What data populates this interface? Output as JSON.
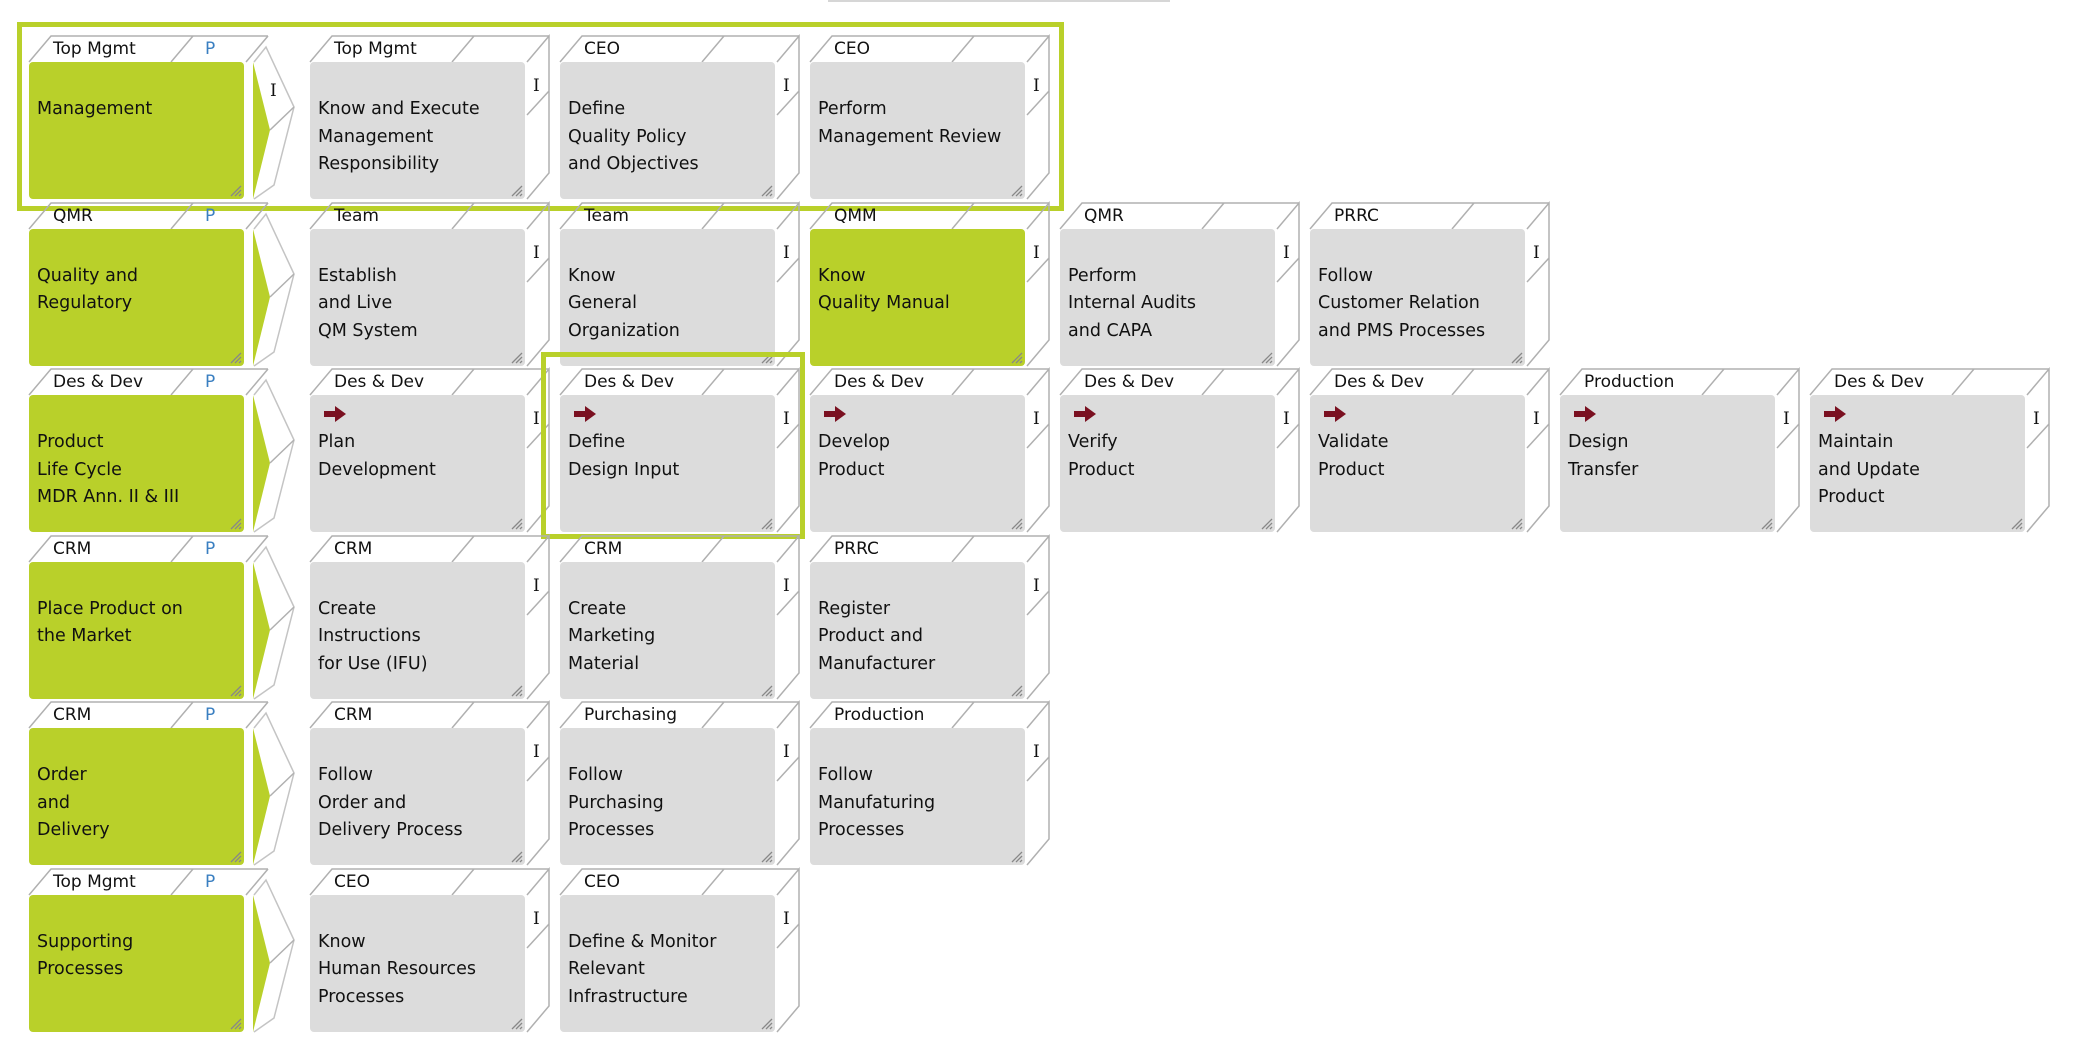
{
  "colors": {
    "accent_green": "#b9d02a",
    "card_grey": "#dcdcdc",
    "process_p": "#3a7fc1",
    "arrow_red": "#7a1020"
  },
  "rows": [
    {
      "header": {
        "role": "Top Mgmt",
        "tag": "P",
        "lines": [
          "Management"
        ],
        "chevron_marker": "I"
      },
      "highlighted": true,
      "cards": [
        {
          "role": "Top Mgmt",
          "marker": "I",
          "lines": [
            "Know and Execute",
            "Management",
            "Responsibility"
          ]
        },
        {
          "role": "CEO",
          "marker": "I",
          "lines": [
            "Define",
            "Quality Policy",
            "and Objectives"
          ]
        },
        {
          "role": "CEO",
          "marker": "I",
          "lines": [
            "Perform",
            "Management Review"
          ]
        }
      ]
    },
    {
      "header": {
        "role": "QMR",
        "tag": "P",
        "lines": [
          "Quality and",
          "Regulatory"
        ]
      },
      "cards": [
        {
          "role": "Team",
          "marker": "I",
          "lines": [
            "Establish",
            "and Live",
            "QM System"
          ]
        },
        {
          "role": "Team",
          "marker": "I",
          "lines": [
            "Know",
            "General",
            "Organization"
          ]
        },
        {
          "role": "QMM",
          "marker": "I",
          "green": true,
          "lines": [
            "Know",
            "Quality Manual"
          ]
        },
        {
          "role": "QMR",
          "marker": "I",
          "lines": [
            "Perform",
            "Internal Audits",
            "and CAPA"
          ]
        },
        {
          "role": "PRRC",
          "marker": "I",
          "lines": [
            "Follow",
            "Customer Relation",
            "and PMS Processes"
          ]
        }
      ]
    },
    {
      "header": {
        "role": "Des & Dev",
        "tag": "P",
        "lines": [
          "Product",
          "Life Cycle",
          "MDR Ann. II & III"
        ]
      },
      "cards": [
        {
          "role": "Des & Dev",
          "marker": "I",
          "arrow": true,
          "lines": [
            "Plan",
            "Development"
          ]
        },
        {
          "role": "Des & Dev",
          "marker": "I",
          "arrow": true,
          "selected": true,
          "lines": [
            "Define",
            "Design Input"
          ]
        },
        {
          "role": "Des & Dev",
          "marker": "I",
          "arrow": true,
          "lines": [
            "Develop",
            "Product"
          ]
        },
        {
          "role": "Des & Dev",
          "marker": "I",
          "arrow": true,
          "lines": [
            "Verify",
            "Product"
          ]
        },
        {
          "role": "Des & Dev",
          "marker": "I",
          "arrow": true,
          "lines": [
            "Validate",
            "Product"
          ]
        },
        {
          "role": "Production",
          "marker": "I",
          "arrow": true,
          "lines": [
            "Design",
            "Transfer"
          ]
        },
        {
          "role": "Des & Dev",
          "marker": "I",
          "arrow": true,
          "lines": [
            "Maintain",
            "and Update",
            "Product"
          ]
        }
      ]
    },
    {
      "header": {
        "role": "CRM",
        "tag": "P",
        "lines": [
          "Place Product on",
          "the Market"
        ]
      },
      "cards": [
        {
          "role": "CRM",
          "marker": "I",
          "lines": [
            "Create",
            "Instructions",
            "for Use (IFU)"
          ]
        },
        {
          "role": "CRM",
          "marker": "I",
          "lines": [
            "Create",
            "Marketing",
            "Material"
          ]
        },
        {
          "role": "PRRC",
          "marker": "I",
          "lines": [
            "Register",
            "Product and",
            "Manufacturer"
          ]
        }
      ]
    },
    {
      "header": {
        "role": "CRM",
        "tag": "P",
        "lines": [
          "Order",
          "and",
          "Delivery"
        ]
      },
      "cards": [
        {
          "role": "CRM",
          "marker": "I",
          "lines": [
            "Follow",
            "Order and",
            "Delivery Process"
          ]
        },
        {
          "role": "Purchasing",
          "marker": "I",
          "lines": [
            "Follow",
            "Purchasing",
            "Processes"
          ]
        },
        {
          "role": "Production",
          "marker": "I",
          "lines": [
            "Follow",
            "Manufaturing",
            "Processes"
          ]
        }
      ]
    },
    {
      "header": {
        "role": "Top Mgmt",
        "tag": "P",
        "lines": [
          "Supporting",
          "Processes"
        ]
      },
      "cards": [
        {
          "role": "CEO",
          "marker": "I",
          "lines": [
            "Know",
            "Human Resources",
            "Processes"
          ]
        },
        {
          "role": "CEO",
          "marker": "I",
          "lines": [
            "Define & Monitor",
            "Relevant",
            "Infrastructure"
          ]
        }
      ]
    }
  ]
}
